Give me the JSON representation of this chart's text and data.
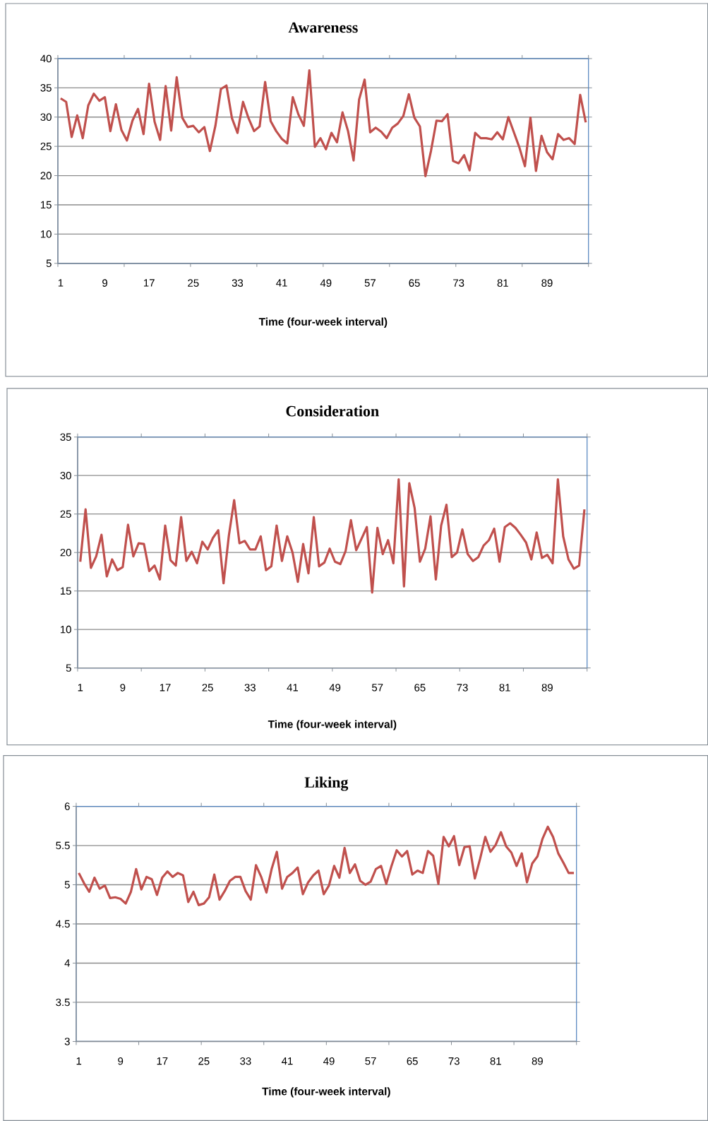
{
  "chart_data": [
    {
      "type": "line",
      "title": "Awareness",
      "xlabel": "Time (four-week interval)",
      "categories": [
        "1",
        null,
        null,
        null,
        null,
        null,
        null,
        null,
        "9",
        null,
        null,
        null,
        null,
        null,
        null,
        null,
        "17",
        null,
        null,
        null,
        null,
        null,
        null,
        null,
        "25",
        null,
        null,
        null,
        null,
        null,
        null,
        null,
        "33",
        null,
        null,
        null,
        null,
        null,
        null,
        null,
        "41",
        null,
        null,
        null,
        null,
        null,
        null,
        null,
        "49",
        null,
        null,
        null,
        null,
        null,
        null,
        null,
        "57",
        null,
        null,
        null,
        null,
        null,
        null,
        null,
        "65",
        null,
        null,
        null,
        null,
        null,
        null,
        null,
        "73",
        null,
        null,
        null,
        null,
        null,
        null,
        null,
        "81",
        null,
        null,
        null,
        null,
        null,
        null,
        null,
        "89",
        null,
        null,
        null,
        null,
        null,
        null,
        null
      ],
      "series": [
        {
          "color": "#c0504d",
          "values": [
            33.2,
            32.6,
            26.6,
            30.3,
            26.4,
            32,
            34,
            32.8,
            33.4,
            27.6,
            32.2,
            27.8,
            26,
            29.4,
            31.4,
            27.1,
            35.7,
            29.2,
            26.1,
            35.3,
            27.7,
            36.8,
            29.9,
            28.3,
            28.5,
            27.4,
            28.3,
            24.2,
            28.5,
            34.8,
            35.4,
            29.8,
            27.3,
            32.6,
            29.8,
            27.6,
            28.4,
            36,
            29.3,
            27.6,
            26.3,
            25.5,
            33.4,
            30.5,
            28.5,
            38,
            24.9,
            26.4,
            24.5,
            27.3,
            25.7,
            30.8,
            27.6,
            22.6,
            33,
            36.4,
            27.4,
            28.2,
            27.5,
            26.4,
            28.2,
            28.9,
            30.2,
            33.9,
            29.9,
            28.4,
            19.9,
            24.2,
            29.4,
            29.3,
            30.5,
            22.5,
            22.1,
            23.5,
            20.9,
            27.3,
            26.4,
            26.4,
            26.2,
            27.4,
            26.2,
            30,
            27.4,
            24.8,
            21.6,
            29.9,
            20.8,
            26.8,
            24,
            22.8,
            27.1,
            26.1,
            26.4,
            25.4,
            33.8,
            29.1
          ]
        }
      ],
      "ylim": [
        5,
        40
      ],
      "yticks": [
        5,
        10,
        15,
        20,
        25,
        30,
        35,
        40
      ],
      "grid": "y"
    },
    {
      "type": "line",
      "title": "Consideration",
      "xlabel": "Time (four-week interval)",
      "categories": [
        "1",
        null,
        null,
        null,
        null,
        null,
        null,
        null,
        "9",
        null,
        null,
        null,
        null,
        null,
        null,
        null,
        "17",
        null,
        null,
        null,
        null,
        null,
        null,
        null,
        "25",
        null,
        null,
        null,
        null,
        null,
        null,
        null,
        "33",
        null,
        null,
        null,
        null,
        null,
        null,
        null,
        "41",
        null,
        null,
        null,
        null,
        null,
        null,
        null,
        "49",
        null,
        null,
        null,
        null,
        null,
        null,
        null,
        "57",
        null,
        null,
        null,
        null,
        null,
        null,
        null,
        "65",
        null,
        null,
        null,
        null,
        null,
        null,
        null,
        "73",
        null,
        null,
        null,
        null,
        null,
        null,
        null,
        "81",
        null,
        null,
        null,
        null,
        null,
        null,
        null,
        "89",
        null,
        null,
        null,
        null,
        null,
        null,
        null
      ],
      "series": [
        {
          "color": "#c0504d",
          "values": [
            18.8,
            25.6,
            18,
            19.5,
            22.3,
            16.9,
            19.1,
            17.7,
            18.1,
            23.6,
            19.5,
            21.2,
            21.1,
            17.6,
            18.3,
            16.5,
            23.5,
            19,
            18.3,
            24.6,
            18.9,
            20.1,
            18.6,
            21.4,
            20.4,
            21.9,
            22.9,
            16,
            22.2,
            26.8,
            21.2,
            21.5,
            20.4,
            20.4,
            22.1,
            17.7,
            18.2,
            23.5,
            18.9,
            22.1,
            20,
            16.2,
            21.1,
            17.3,
            24.6,
            18.2,
            18.7,
            20.5,
            18.8,
            18.5,
            20.2,
            24.2,
            20.3,
            21.8,
            23.3,
            14.8,
            23.2,
            19.8,
            21.6,
            18.6,
            29.5,
            15.6,
            29,
            25.8,
            18.8,
            20.5,
            24.7,
            16.5,
            23.5,
            26.2,
            19.4,
            20,
            23,
            19.8,
            18.9,
            19.4,
            20.9,
            21.6,
            23.1,
            18.8,
            23.3,
            23.8,
            23.2,
            22.3,
            21.3,
            19.1,
            22.6,
            19.3,
            19.7,
            18.6,
            29.5,
            22.1,
            19.1,
            17.9,
            18.3,
            25.6
          ]
        }
      ],
      "ylim": [
        5,
        35
      ],
      "yticks": [
        5,
        10,
        15,
        20,
        25,
        30,
        35
      ],
      "grid": "y"
    },
    {
      "type": "line",
      "title": "Liking",
      "xlabel": "Time (four-week interval)",
      "categories": [
        "1",
        null,
        null,
        null,
        null,
        null,
        null,
        null,
        "9",
        null,
        null,
        null,
        null,
        null,
        null,
        null,
        "17",
        null,
        null,
        null,
        null,
        null,
        null,
        null,
        "25",
        null,
        null,
        null,
        null,
        null,
        null,
        null,
        "33",
        null,
        null,
        null,
        null,
        null,
        null,
        null,
        "41",
        null,
        null,
        null,
        null,
        null,
        null,
        null,
        "49",
        null,
        null,
        null,
        null,
        null,
        null,
        null,
        "57",
        null,
        null,
        null,
        null,
        null,
        null,
        null,
        "65",
        null,
        null,
        null,
        null,
        null,
        null,
        null,
        "73",
        null,
        null,
        null,
        null,
        null,
        null,
        null,
        "81",
        null,
        null,
        null,
        null,
        null,
        null,
        null,
        "89",
        null,
        null,
        null,
        null,
        null,
        null,
        null
      ],
      "series": [
        {
          "color": "#c0504d",
          "values": [
            5.15,
            5.02,
            4.91,
            5.09,
            4.95,
            4.99,
            4.83,
            4.84,
            4.82,
            4.76,
            4.91,
            5.2,
            4.94,
            5.1,
            5.07,
            4.87,
            5.09,
            5.17,
            5.1,
            5.15,
            5.12,
            4.78,
            4.91,
            4.74,
            4.76,
            4.84,
            5.13,
            4.81,
            4.92,
            5.05,
            5.1,
            5.1,
            4.92,
            4.81,
            5.25,
            5.1,
            4.9,
            5.2,
            5.42,
            4.95,
            5.1,
            5.15,
            5.22,
            4.88,
            5.03,
            5.12,
            5.18,
            4.88,
            4.99,
            5.24,
            5.09,
            5.47,
            5.15,
            5.26,
            5.05,
            5.0,
            5.04,
            5.2,
            5.24,
            5.01,
            5.24,
            5.44,
            5.36,
            5.43,
            5.13,
            5.18,
            5.15,
            5.43,
            5.37,
            5.01,
            5.61,
            5.49,
            5.62,
            5.25,
            5.48,
            5.49,
            5.08,
            5.33,
            5.61,
            5.42,
            5.51,
            5.67,
            5.49,
            5.41,
            5.24,
            5.4,
            5.03,
            5.27,
            5.36,
            5.59,
            5.74,
            5.61,
            5.4,
            5.28,
            5.15,
            5.15
          ]
        }
      ],
      "ylim": [
        3,
        6
      ],
      "yticks": [
        3,
        3.5,
        4,
        4.5,
        5,
        5.5,
        6
      ],
      "grid": "y"
    }
  ]
}
